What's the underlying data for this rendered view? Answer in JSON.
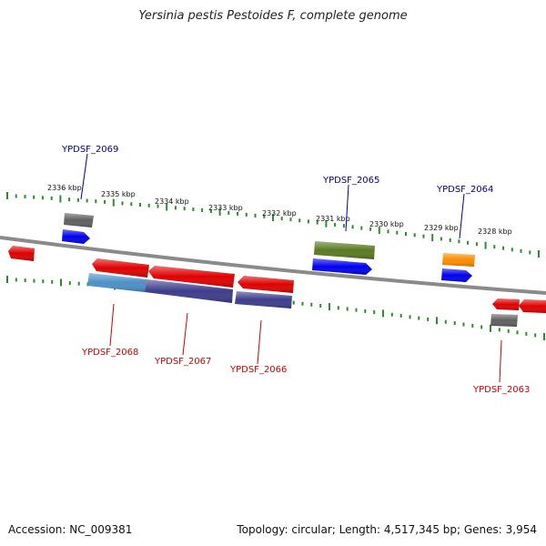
{
  "header": {
    "title": "Yersinia pestis Pestoides F, complete genome"
  },
  "footer": {
    "accession": "Accession: NC_009381",
    "topology": "Topology: circular; Length: 4,517,345 bp; Genes: 3,954"
  },
  "scale": {
    "ticks": [
      {
        "label": "2336 kbp"
      },
      {
        "label": "2335 kbp"
      },
      {
        "label": "2334 kbp"
      },
      {
        "label": "2333 kbp"
      },
      {
        "label": "2332 kbp"
      },
      {
        "label": "2331 kbp"
      },
      {
        "label": "2330 kbp"
      },
      {
        "label": "2329 kbp"
      },
      {
        "label": "2328 kbp"
      }
    ]
  },
  "genes": {
    "forward_labels": [
      "YPDSF_2069",
      "YPDSF_2065",
      "YPDSF_2064"
    ],
    "reverse_labels": [
      "YPDSF_2068",
      "YPDSF_2067",
      "YPDSF_2066",
      "YPDSF_2063"
    ]
  },
  "colors": {
    "backbone": "#8a8a8a",
    "tick": "#2e8b2e",
    "cds": "#e00000",
    "forward_cds": "#0000ee",
    "gene": "#606060",
    "rrna": "#5a7a20",
    "trna": "#ff8c00",
    "misc": "#4a90c8",
    "repeat": "#3c3c8c",
    "forward_label": "#00008b",
    "reverse_label": "#cc0000"
  }
}
